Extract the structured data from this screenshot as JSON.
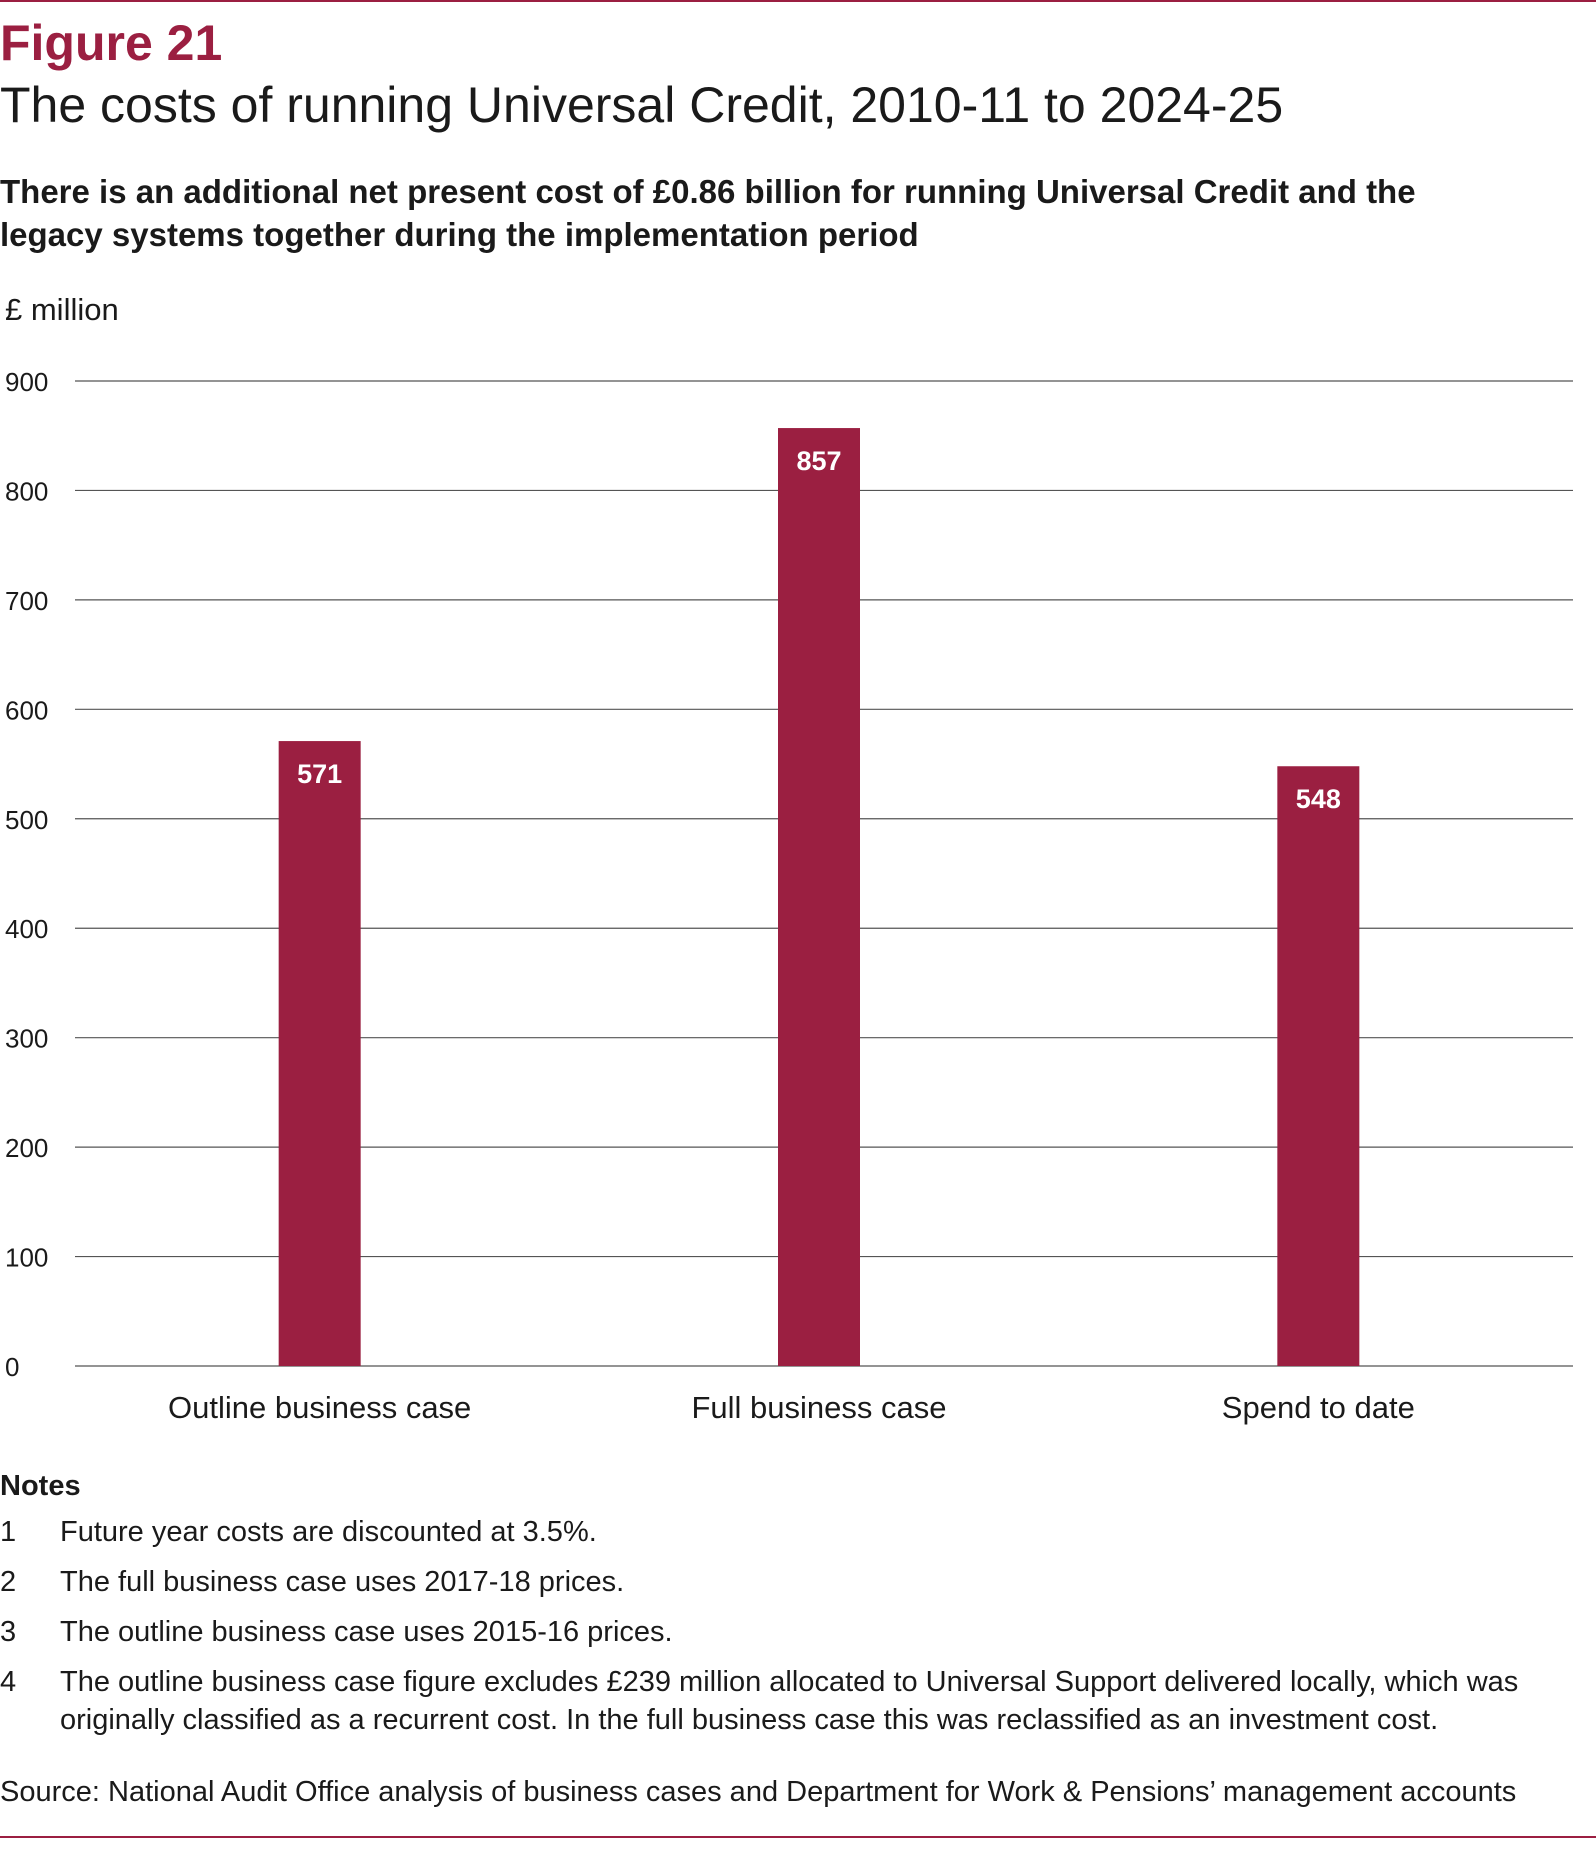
{
  "figure": {
    "number": "Figure 21",
    "title": "The costs of running Universal Credit, 2010-11 to 2024-25",
    "subtitle": "There is an additional net present cost of £0.86 billion for running Universal Credit and the legacy systems together during the implementation period"
  },
  "colors": {
    "accent": "#9b1f41",
    "bar": "#9b1f41",
    "gridline": "#555555",
    "text": "#1a1a1a"
  },
  "chart_data": {
    "type": "bar",
    "title": "",
    "ylabel": "£ million",
    "xlabel": "",
    "categories": [
      "Outline business case",
      "Full business case",
      "Spend to date"
    ],
    "values": [
      571,
      857,
      548
    ],
    "data_labels": [
      "571",
      "857",
      "548"
    ],
    "ylim": [
      0,
      900
    ],
    "yticks": [
      0,
      100,
      200,
      300,
      400,
      500,
      600,
      700,
      800,
      900
    ],
    "grid": true,
    "legend": "none"
  },
  "notes": {
    "heading": "Notes",
    "items": [
      {
        "num": "1",
        "text": "Future year costs are discounted at 3.5%."
      },
      {
        "num": "2",
        "text": "The full business case uses 2017-18 prices."
      },
      {
        "num": "3",
        "text": "The outline business case uses 2015-16 prices."
      },
      {
        "num": "4",
        "text": "The outline business case figure excludes £239 million allocated to Universal Support delivered locally, which was originally classified as a recurrent cost. In the full business case this was reclassified as an investment cost."
      }
    ]
  },
  "source": "Source: National Audit Office analysis of business cases and Department for Work & Pensions’ management accounts"
}
